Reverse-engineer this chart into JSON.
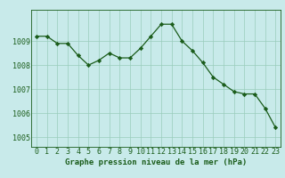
{
  "hours": [
    0,
    1,
    2,
    3,
    4,
    5,
    6,
    7,
    8,
    9,
    10,
    11,
    12,
    13,
    14,
    15,
    16,
    17,
    18,
    19,
    20,
    21,
    22,
    23
  ],
  "pressure": [
    1009.2,
    1009.2,
    1008.9,
    1008.9,
    1008.4,
    1008.0,
    1008.2,
    1008.5,
    1008.3,
    1008.3,
    1008.7,
    1009.2,
    1009.7,
    1009.7,
    1009.0,
    1008.6,
    1008.1,
    1007.5,
    1007.2,
    1006.9,
    1006.8,
    1006.8,
    1006.2,
    1005.4
  ],
  "line_color": "#1a5c1a",
  "marker_color": "#1a5c1a",
  "bg_color": "#c8eaea",
  "grid_color": "#99ccbb",
  "axis_label_color": "#1a5c1a",
  "title": "Graphe pression niveau de la mer (hPa)",
  "ylim_min": 1004.6,
  "ylim_max": 1010.3,
  "yticks": [
    1005,
    1006,
    1007,
    1008,
    1009
  ],
  "tick_fontsize": 6,
  "title_fontsize": 6.5
}
